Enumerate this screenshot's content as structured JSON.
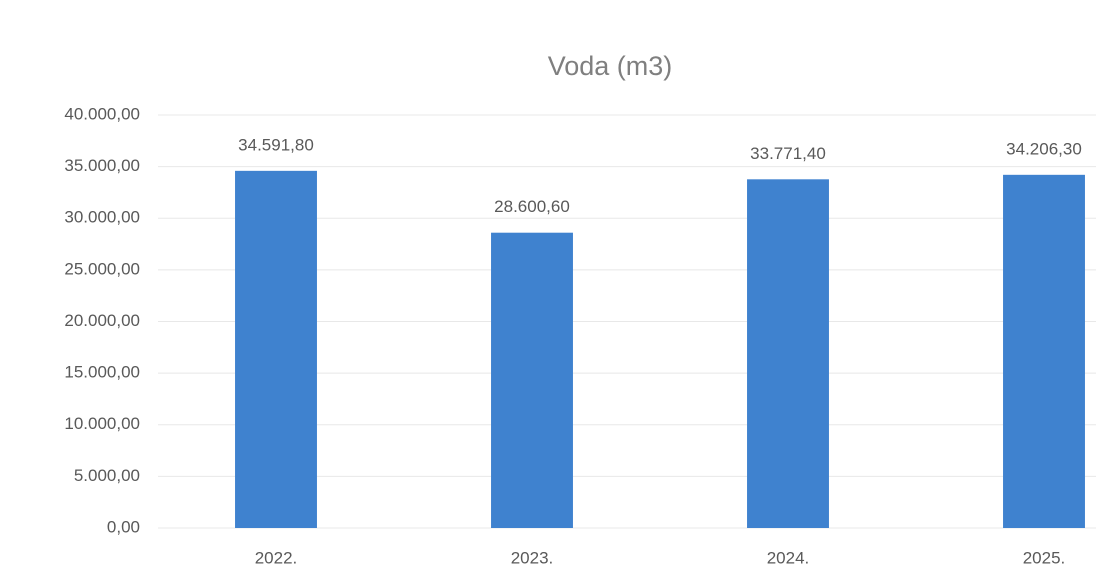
{
  "chart_data": {
    "type": "bar",
    "title": "Voda (m3)",
    "categories": [
      "2022.",
      "2023.",
      "2024.",
      "2025."
    ],
    "values": [
      34591.8,
      28600.6,
      33771.4,
      34206.3
    ],
    "value_labels": [
      "34.591,80",
      "28.600,60",
      "33.771,40",
      "34.206,30"
    ],
    "color": "#3f82cf",
    "ylim": [
      0,
      40000
    ],
    "yticks": [
      {
        "value": 0,
        "label": "0,00"
      },
      {
        "value": 5000,
        "label": "5.000,00"
      },
      {
        "value": 10000,
        "label": "10.000,00"
      },
      {
        "value": 15000,
        "label": "15.000,00"
      },
      {
        "value": 20000,
        "label": "20.000,00"
      },
      {
        "value": 25000,
        "label": "25.000,00"
      },
      {
        "value": 30000,
        "label": "30.000,00"
      },
      {
        "value": 35000,
        "label": "35.000,00"
      },
      {
        "value": 40000,
        "label": "40.000,00"
      }
    ],
    "grid": true
  }
}
